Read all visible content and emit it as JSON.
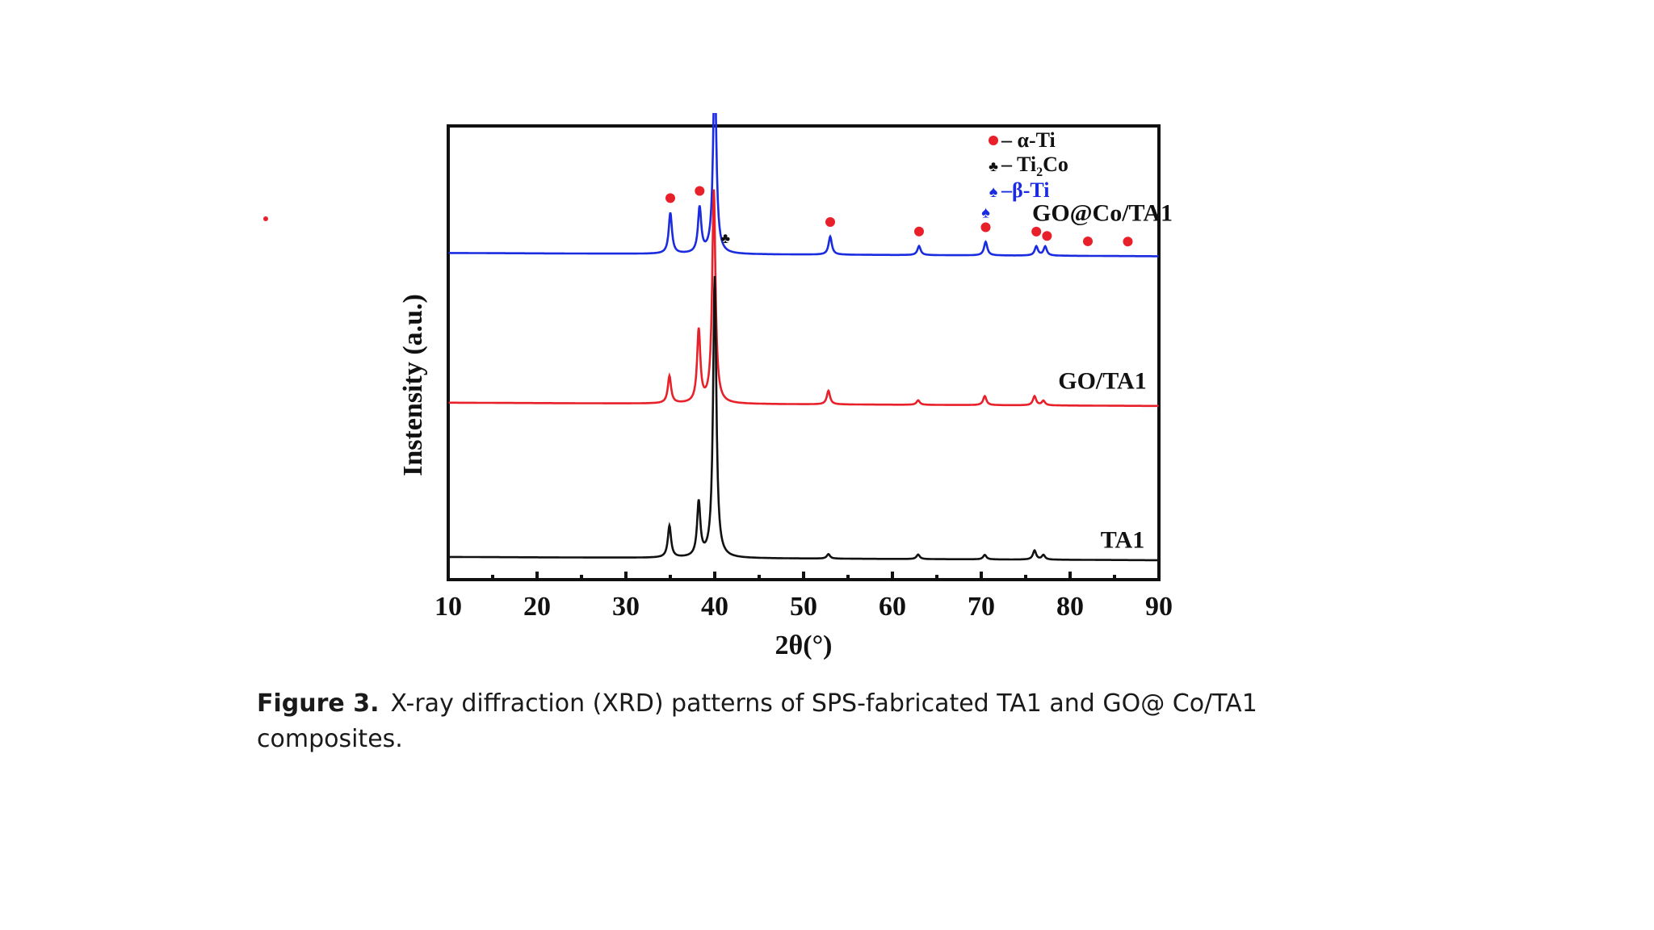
{
  "chart_data": {
    "type": "line",
    "xlabel": "2θ(°)",
    "ylabel": "Instensity (a.u.)",
    "xlim": [
      10,
      90
    ],
    "xticks": [
      "10",
      "20",
      "30",
      "40",
      "50",
      "60",
      "70",
      "80",
      "90"
    ],
    "grid": false,
    "y_ticks_shown": false,
    "legend": {
      "placement": "top-right",
      "entries": [
        {
          "marker": "circle",
          "color": "#e8202a",
          "label": "– α-Ti"
        },
        {
          "marker": "club",
          "color": "#111111",
          "label_parts": [
            "– Ti",
            "2",
            "Co"
          ]
        },
        {
          "marker": "spade",
          "color": "#1a2be0",
          "label": "–β-Ti"
        }
      ]
    },
    "series": [
      {
        "name": "GO@Co/TA1",
        "color": "#1a2be0",
        "offset": 0.72,
        "peaks": [
          {
            "x": 35.0,
            "h": 0.09
          },
          {
            "x": 38.3,
            "h": 0.1
          },
          {
            "x": 40.0,
            "h": 0.42
          },
          {
            "x": 53.0,
            "h": 0.04
          },
          {
            "x": 63.0,
            "h": 0.02
          },
          {
            "x": 70.5,
            "h": 0.03
          },
          {
            "x": 76.2,
            "h": 0.02
          },
          {
            "x": 77.2,
            "h": 0.02
          }
        ]
      },
      {
        "name": "GO/TA1",
        "color": "#e8202a",
        "offset": 0.39,
        "peaks": [
          {
            "x": 34.9,
            "h": 0.06
          },
          {
            "x": 38.2,
            "h": 0.16
          },
          {
            "x": 39.9,
            "h": 0.47
          },
          {
            "x": 52.8,
            "h": 0.03
          },
          {
            "x": 62.9,
            "h": 0.01
          },
          {
            "x": 70.4,
            "h": 0.02
          },
          {
            "x": 76.0,
            "h": 0.02
          },
          {
            "x": 77.0,
            "h": 0.01
          }
        ]
      },
      {
        "name": "TA1",
        "color": "#111111",
        "offset": 0.05,
        "peaks": [
          {
            "x": 34.9,
            "h": 0.07
          },
          {
            "x": 38.2,
            "h": 0.12
          },
          {
            "x": 40.0,
            "h": 0.62
          },
          {
            "x": 52.8,
            "h": 0.01
          },
          {
            "x": 62.9,
            "h": 0.01
          },
          {
            "x": 70.4,
            "h": 0.01
          },
          {
            "x": 76.0,
            "h": 0.02
          },
          {
            "x": 77.0,
            "h": 0.01
          }
        ]
      }
    ],
    "annotations": {
      "alpha_ti_markers_x": [
        35.0,
        38.3,
        40.0,
        53.0,
        63.0,
        70.5,
        76.2,
        77.4,
        82.0,
        86.5
      ],
      "ti2co_markers_x": [
        41.2
      ],
      "beta_ti_markers_x": [
        70.5
      ]
    }
  },
  "caption": {
    "label": "Figure 3.",
    "text": "X-ray diffraction (XRD) patterns of SPS-fabricated TA1 and GO@ Co/TA1  composites."
  }
}
